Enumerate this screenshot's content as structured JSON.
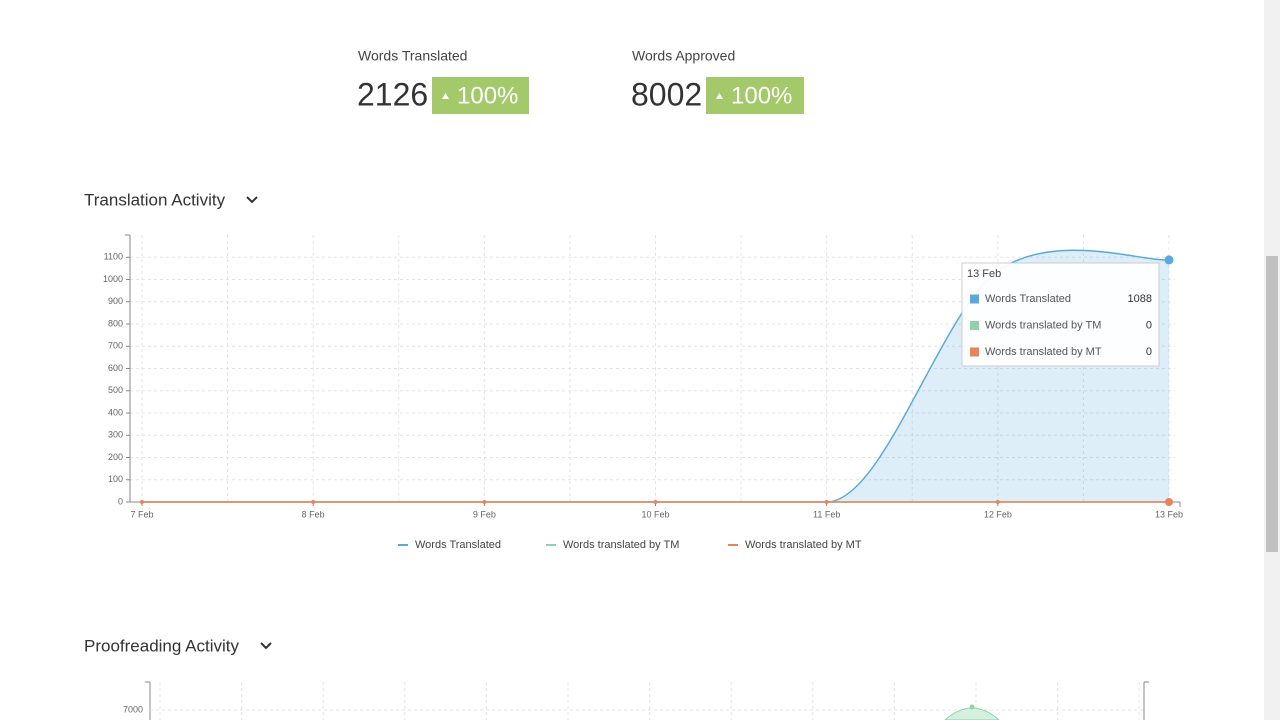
{
  "stats": [
    {
      "label": "Words Translated",
      "value": 2126,
      "change": "100%"
    },
    {
      "label": "Words Approved",
      "value": 8002,
      "change": "100%"
    }
  ],
  "translation_activity": {
    "title": "Translation Activity",
    "chart": {
      "type": "area",
      "categories": [
        "7 Feb",
        "8 Feb",
        "9 Feb",
        "10 Feb",
        "11 Feb",
        "12 Feb",
        "13 Feb"
      ],
      "series": [
        {
          "name": "Words Translated",
          "color": "#5aa9dd",
          "values": [
            0,
            0,
            0,
            0,
            0,
            1038,
            1088
          ]
        },
        {
          "name": "Words translated by TM",
          "color": "#8fd1a9",
          "values": [
            0,
            0,
            0,
            0,
            0,
            0,
            0
          ]
        },
        {
          "name": "Words translated by MT",
          "color": "#e8845a",
          "values": [
            0,
            0,
            0,
            0,
            0,
            0,
            0
          ]
        }
      ],
      "ylim": [
        0,
        1200
      ],
      "yticks": [
        0,
        100,
        200,
        300,
        400,
        500,
        600,
        700,
        800,
        900,
        1000,
        1100
      ],
      "grid": true,
      "tooltip": {
        "category": "13 Feb"
      }
    }
  },
  "proofreading_activity": {
    "title": "Proofreading Activity",
    "chart": {
      "yticks": [
        7000
      ]
    }
  }
}
